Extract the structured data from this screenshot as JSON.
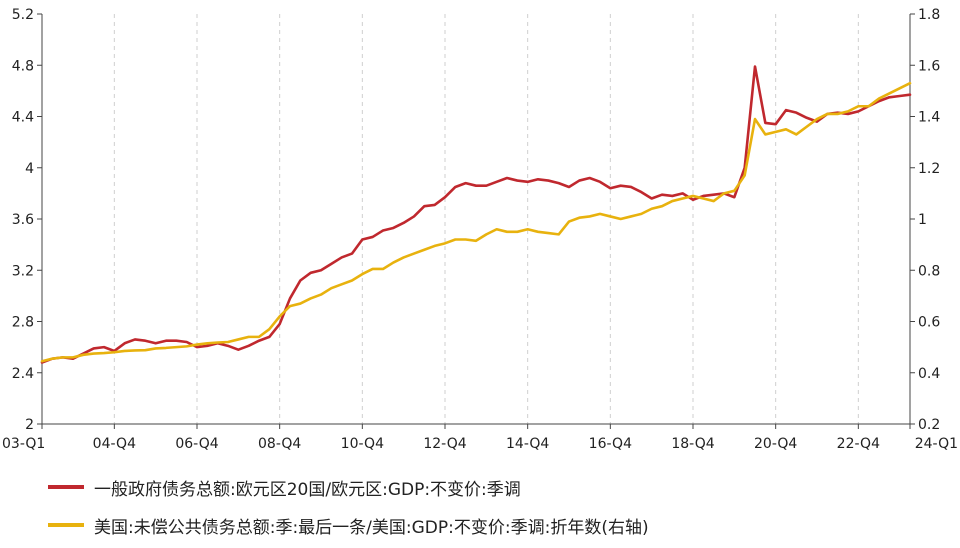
{
  "chart_data": {
    "type": "line",
    "x_tick_labels": [
      "03-Q1",
      "04-Q4",
      "06-Q4",
      "08-Q4",
      "10-Q4",
      "12-Q4",
      "14-Q4",
      "16-Q4",
      "18-Q4",
      "20-Q4",
      "22-Q4",
      "24-Q1"
    ],
    "x_tick_index": [
      0,
      7,
      15,
      23,
      31,
      39,
      47,
      55,
      63,
      71,
      79,
      84
    ],
    "y_left": {
      "ticks": [
        "2",
        "2.4",
        "2.8",
        "3.2",
        "3.6",
        "4",
        "4.4",
        "4.8",
        "5.2"
      ],
      "range": [
        2,
        5.2
      ]
    },
    "y_right": {
      "ticks": [
        "0.2",
        "0.4",
        "0.6",
        "0.8",
        "1",
        "1.2",
        "1.4",
        "1.6",
        "1.8"
      ],
      "range": [
        0.2,
        1.8
      ]
    },
    "grid": "vertical dashed",
    "legend_position": "bottom",
    "series": [
      {
        "name": "一般政府债务总额:欧元区20国/欧元区:GDP:不变价:季调",
        "axis": "left",
        "color": "#c0282e",
        "values": [
          2.48,
          2.51,
          2.52,
          2.51,
          2.55,
          2.59,
          2.6,
          2.57,
          2.63,
          2.66,
          2.65,
          2.63,
          2.65,
          2.65,
          2.64,
          2.6,
          2.61,
          2.63,
          2.61,
          2.58,
          2.61,
          2.65,
          2.68,
          2.78,
          2.98,
          3.12,
          3.18,
          3.2,
          3.25,
          3.3,
          3.33,
          3.44,
          3.46,
          3.51,
          3.53,
          3.57,
          3.62,
          3.7,
          3.71,
          3.77,
          3.85,
          3.88,
          3.86,
          3.86,
          3.89,
          3.92,
          3.9,
          3.89,
          3.91,
          3.9,
          3.88,
          3.85,
          3.9,
          3.92,
          3.89,
          3.84,
          3.86,
          3.85,
          3.81,
          3.76,
          3.79,
          3.78,
          3.8,
          3.75,
          3.78,
          3.79,
          3.8,
          3.77,
          4.0,
          4.79,
          4.35,
          4.34,
          4.45,
          4.43,
          4.39,
          4.36,
          4.42,
          4.43,
          4.42,
          4.44,
          4.48,
          4.52,
          4.55,
          4.56,
          4.57
        ]
      },
      {
        "name": "美国:未偿公共债务总额:季:最后一条/美国:GDP:不变价:季调:折年数(右轴)",
        "axis": "right",
        "color": "#e8b20e",
        "values": [
          0.445,
          0.455,
          0.46,
          0.46,
          0.47,
          0.475,
          0.477,
          0.48,
          0.485,
          0.487,
          0.488,
          0.495,
          0.497,
          0.5,
          0.503,
          0.51,
          0.515,
          0.518,
          0.52,
          0.53,
          0.54,
          0.54,
          0.57,
          0.62,
          0.66,
          0.67,
          0.69,
          0.705,
          0.73,
          0.745,
          0.76,
          0.785,
          0.805,
          0.805,
          0.83,
          0.85,
          0.865,
          0.88,
          0.895,
          0.905,
          0.92,
          0.92,
          0.915,
          0.94,
          0.96,
          0.95,
          0.95,
          0.96,
          0.95,
          0.945,
          0.94,
          0.99,
          1.005,
          1.01,
          1.02,
          1.01,
          1.0,
          1.01,
          1.02,
          1.04,
          1.05,
          1.07,
          1.08,
          1.09,
          1.08,
          1.07,
          1.1,
          1.11,
          1.17,
          1.39,
          1.33,
          1.34,
          1.35,
          1.33,
          1.36,
          1.39,
          1.41,
          1.41,
          1.42,
          1.44,
          1.44,
          1.47,
          1.49,
          1.51,
          1.53
        ]
      }
    ]
  }
}
